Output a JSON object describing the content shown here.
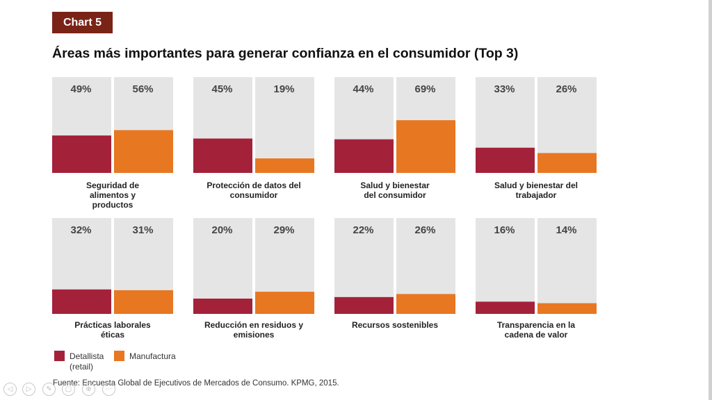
{
  "header": {
    "tag": "Chart 5",
    "title": "Áreas más importantes para generar confianza en el consumidor (Top 3)"
  },
  "colors": {
    "retail": "#a4213a",
    "manufacturing": "#e87722",
    "panel_bg": "#e5e5e5",
    "tag_bg": "#7a2317"
  },
  "chart_data": {
    "type": "bar",
    "title": "Áreas más importantes para generar confianza en el consumidor (Top 3)",
    "ylim": [
      0,
      100
    ],
    "series_names": [
      "Detallista (retail)",
      "Manufactura"
    ],
    "categories": [
      {
        "label": "Seguridad de alimentos y productos",
        "lines": [
          "Seguridad de",
          "alimentos y",
          "productos"
        ],
        "values": [
          49,
          56
        ],
        "value_labels": [
          "49%",
          "56%"
        ]
      },
      {
        "label": "Protección de datos del consumidor",
        "lines": [
          "Protección de datos del",
          "consumidor"
        ],
        "values": [
          45,
          19
        ],
        "value_labels": [
          "45%",
          "19%"
        ]
      },
      {
        "label": "Salud y bienestar del consumidor",
        "lines": [
          "Salud y bienestar",
          "del consumidor"
        ],
        "values": [
          44,
          69
        ],
        "value_labels": [
          "44%",
          "69%"
        ]
      },
      {
        "label": "Salud y bienestar del trabajador",
        "lines": [
          "Salud y bienestar del",
          "trabajador"
        ],
        "values": [
          33,
          26
        ],
        "value_labels": [
          "33%",
          "26%"
        ]
      },
      {
        "label": "Prácticas laborales éticas",
        "lines": [
          "Prácticas laborales",
          "éticas"
        ],
        "values": [
          32,
          31
        ],
        "value_labels": [
          "32%",
          "31%"
        ]
      },
      {
        "label": "Reducción en residuos y emisiones",
        "lines": [
          "Reducción en residuos y",
          "emisiones"
        ],
        "values": [
          20,
          29
        ],
        "value_labels": [
          "20%",
          "29%"
        ]
      },
      {
        "label": "Recursos sostenibles",
        "lines": [
          "Recursos sostenibles"
        ],
        "values": [
          22,
          26
        ],
        "value_labels": [
          "22%",
          "26%"
        ]
      },
      {
        "label": "Transparencia en la cadena de valor",
        "lines": [
          "Transparencia en la",
          "cadena de valor"
        ],
        "values": [
          16,
          14
        ],
        "value_labels": [
          "16%",
          "14%"
        ]
      }
    ]
  },
  "legend": {
    "retail_lines": [
      "Detallista",
      "(retail)"
    ],
    "manufacturing": "Manufactura"
  },
  "footer": {
    "source": "Fuente: Encuesta Global de Ejecutivos de Mercados de Consumo. KPMG, 2015."
  },
  "player_controls": [
    {
      "icon": "previous-icon",
      "glyph": "◁"
    },
    {
      "icon": "next-icon",
      "glyph": "▷"
    },
    {
      "icon": "pen-icon",
      "glyph": "✎"
    },
    {
      "icon": "slides-icon",
      "glyph": "▢"
    },
    {
      "icon": "zoom-icon",
      "glyph": "⊕"
    },
    {
      "icon": "more-icon",
      "glyph": "⋯"
    }
  ]
}
